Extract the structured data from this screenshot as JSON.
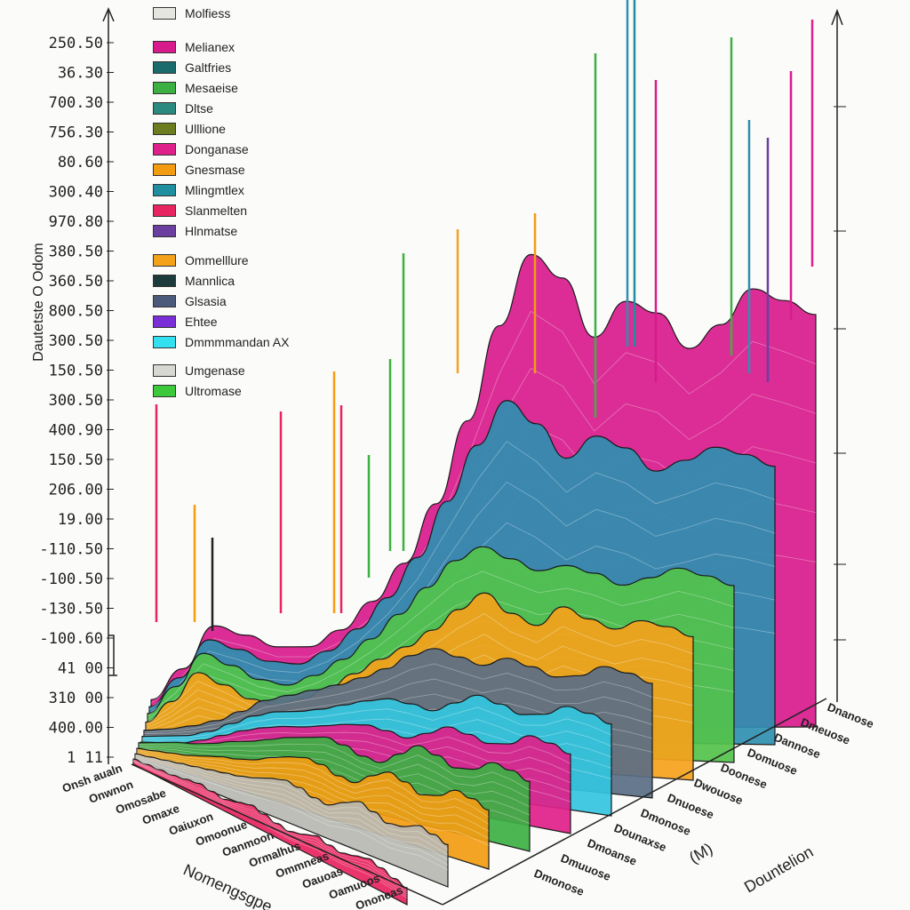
{
  "chart_data": {
    "type": "area",
    "title": "",
    "ylabel": "Dautetste  O Odom",
    "xlabel_left": "Nomengsgpe",
    "xlabel_right": "Dountelion",
    "xlabel_mid": "(M)",
    "y_tick_labels": [
      "250.50",
      "36.30",
      "700.30",
      "756.30",
      "80.60",
      "300.40",
      "970.80",
      "380.50",
      "360.50",
      "800.50",
      "300.50",
      "150.50",
      "300.50",
      "400.90",
      "150.50",
      "206.00",
      "19.00",
      "-110.50",
      "-100.50",
      "-130.50",
      "-100.60",
      "41  00",
      "310  00",
      "400.00",
      "1  11"
    ],
    "x_tick_labels_left": [
      "Onsh aualn",
      "Onwnon",
      "Omosabe",
      "Omaxe",
      "Oaiuxon",
      "Omoonue",
      "Oanmoon",
      "Ormalhus",
      "Ommneas",
      "Oauoas",
      "Oamuoos",
      "Ononeas"
    ],
    "x_tick_labels_right": [
      "Dmonose",
      "Dmuuose",
      "Dmoanse",
      "Dounaxse",
      "Dmonose",
      "Dnuoese",
      "Dwouose",
      "Doonese",
      "Domuose",
      "Dannose",
      "Dmeuose",
      "Dnanose"
    ],
    "legend": [
      {
        "label": "Molfiess",
        "color": "#e6e6e0"
      },
      {
        "label": "Melianex",
        "color": "#d81b8c"
      },
      {
        "label": "Galtfries",
        "color": "#1a6b6b"
      },
      {
        "label": "Mesaeise",
        "color": "#3cb043"
      },
      {
        "label": "Dltse",
        "color": "#2a8a80"
      },
      {
        "label": "Ulllione",
        "color": "#6b7d1e"
      },
      {
        "label": "Donganase",
        "color": "#e0208a"
      },
      {
        "label": "Gnesmase",
        "color": "#f39c12"
      },
      {
        "label": "Mlingmtlex",
        "color": "#1f8fa0"
      },
      {
        "label": "Slanmelten",
        "color": "#e8245f"
      },
      {
        "label": "Hlnmatse",
        "color": "#6b3fa0"
      },
      {
        "label": "Ommelllure",
        "color": "#f5a21b"
      },
      {
        "label": "Mannlica",
        "color": "#1e3b3b"
      },
      {
        "label": "Glsasia",
        "color": "#4b5a7a"
      },
      {
        "label": "Ehtee",
        "color": "#7a2ed6"
      },
      {
        "label": "Dmmmmandan AX",
        "color": "#33e0f0"
      },
      {
        "label": "Umgenase",
        "color": "#d8d8d2"
      },
      {
        "label": "Ultromase",
        "color": "#3cc93c"
      }
    ],
    "series": [
      {
        "name": "Slanmelten",
        "color": "#e8245f",
        "values": [
          8,
          10,
          12,
          14,
          18,
          22,
          20,
          18,
          24,
          30,
          26,
          22,
          20,
          26,
          34,
          30,
          28,
          34,
          40,
          36,
          30,
          26
        ]
      },
      {
        "name": "Umgenase",
        "color": "#b8b8b2",
        "values": [
          10,
          14,
          18,
          22,
          26,
          30,
          34,
          38,
          44,
          52,
          58,
          56,
          50,
          48,
          60,
          70,
          64,
          56,
          60,
          70,
          66,
          60
        ]
      },
      {
        "name": "Gnesmase",
        "color": "#f39c12",
        "values": [
          12,
          16,
          20,
          24,
          30,
          36,
          40,
          46,
          56,
          64,
          70,
          68,
          60,
          58,
          74,
          86,
          80,
          70,
          76,
          90,
          86,
          78
        ]
      },
      {
        "name": "Mesaeise",
        "color": "#3cb043",
        "values": [
          14,
          20,
          26,
          30,
          36,
          44,
          50,
          58,
          66,
          72,
          78,
          74,
          66,
          64,
          80,
          96,
          90,
          80,
          84,
          98,
          94,
          86
        ]
      },
      {
        "name": "Donganase",
        "color": "#e0208a",
        "values": [
          10,
          14,
          18,
          26,
          36,
          46,
          54,
          60,
          64,
          70,
          76,
          80,
          78,
          74,
          84,
          96,
          92,
          86,
          90,
          104,
          100,
          92
        ]
      },
      {
        "name": "Dmmmmandan AX",
        "color": "#33c6e0",
        "values": [
          12,
          16,
          20,
          28,
          40,
          52,
          60,
          64,
          70,
          78,
          86,
          92,
          90,
          86,
          98,
          110,
          104,
          96,
          100,
          112,
          108,
          100
        ]
      },
      {
        "name": "Glsasia",
        "color": "#5a6e86",
        "values": [
          14,
          18,
          24,
          32,
          44,
          58,
          66,
          74,
          82,
          92,
          104,
          120,
          130,
          124,
          118,
          128,
          122,
          114,
          118,
          130,
          126,
          118
        ]
      },
      {
        "name": "Ommelllure",
        "color": "#f5a21b",
        "values": [
          18,
          40,
          70,
          60,
          48,
          44,
          52,
          64,
          80,
          96,
          110,
          128,
          150,
          168,
          150,
          140,
          160,
          150,
          142,
          152,
          148,
          140
        ]
      },
      {
        "name": "Ultromase",
        "color": "#52c24a",
        "values": [
          22,
          48,
          80,
          70,
          58,
          54,
          64,
          80,
          100,
          124,
          150,
          176,
          190,
          180,
          170,
          176,
          170,
          160,
          168,
          178,
          172,
          164
        ]
      },
      {
        "name": "Mlingmtlex",
        "color": "#2e8fb0",
        "values": [
          24,
          50,
          84,
          76,
          66,
          64,
          76,
          96,
          124,
          160,
          210,
          260,
          300,
          280,
          250,
          270,
          260,
          240,
          250,
          262,
          256,
          246
        ]
      },
      {
        "name": "Melianex",
        "color": "#d81b8c",
        "values": [
          26,
          52,
          88,
          80,
          70,
          70,
          84,
          108,
          140,
          190,
          260,
          340,
          400,
          380,
          330,
          360,
          350,
          320,
          340,
          370,
          360,
          348
        ]
      }
    ]
  }
}
